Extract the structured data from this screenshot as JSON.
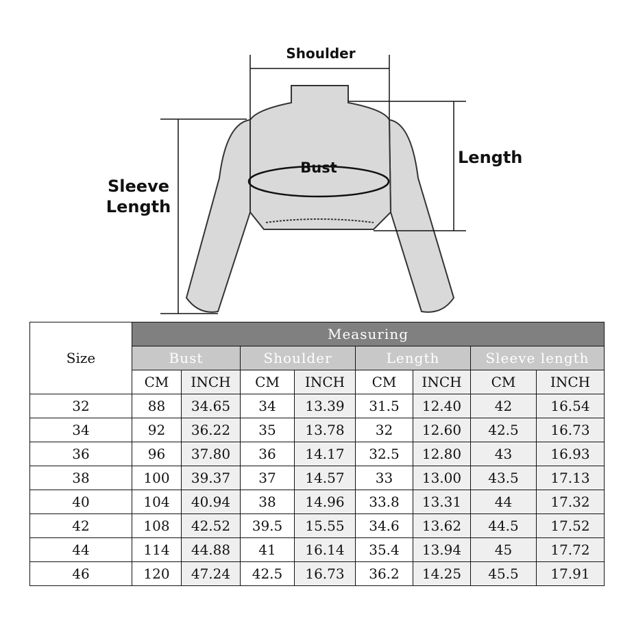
{
  "diagram": {
    "labels": {
      "shoulder": "Shoulder",
      "bust": "Bust",
      "length": "Length",
      "sleeve_length_line1": "Sleeve",
      "sleeve_length_line2": "Length"
    }
  },
  "table": {
    "size_header": "Size",
    "group_header": "Measuring",
    "measures": [
      "Bust",
      "Shoulder",
      "Length",
      "Sleeve length"
    ],
    "units": [
      "CM",
      "INCH",
      "CM",
      "INCH",
      "CM",
      "INCH",
      "CM",
      "INCH"
    ],
    "rows": [
      [
        "32",
        "88",
        "34.65",
        "34",
        "13.39",
        "31.5",
        "12.40",
        "42",
        "16.54"
      ],
      [
        "34",
        "92",
        "36.22",
        "35",
        "13.78",
        "32",
        "12.60",
        "42.5",
        "16.73"
      ],
      [
        "36",
        "96",
        "37.80",
        "36",
        "14.17",
        "32.5",
        "12.80",
        "43",
        "16.93"
      ],
      [
        "38",
        "100",
        "39.37",
        "37",
        "14.57",
        "33",
        "13.00",
        "43.5",
        "17.13"
      ],
      [
        "40",
        "104",
        "40.94",
        "38",
        "14.96",
        "33.8",
        "13.31",
        "44",
        "17.32"
      ],
      [
        "42",
        "108",
        "42.52",
        "39.5",
        "15.55",
        "34.6",
        "13.62",
        "44.5",
        "17.52"
      ],
      [
        "44",
        "114",
        "44.88",
        "41",
        "16.14",
        "35.4",
        "13.94",
        "45",
        "17.72"
      ],
      [
        "46",
        "120",
        "47.24",
        "42.5",
        "16.73",
        "36.2",
        "14.25",
        "45.5",
        "17.91"
      ]
    ]
  },
  "colors": {
    "group_header_bg": "#808080",
    "measure_header_bg": "#c8c8c8",
    "inch_cell_bg": "#efefef"
  }
}
